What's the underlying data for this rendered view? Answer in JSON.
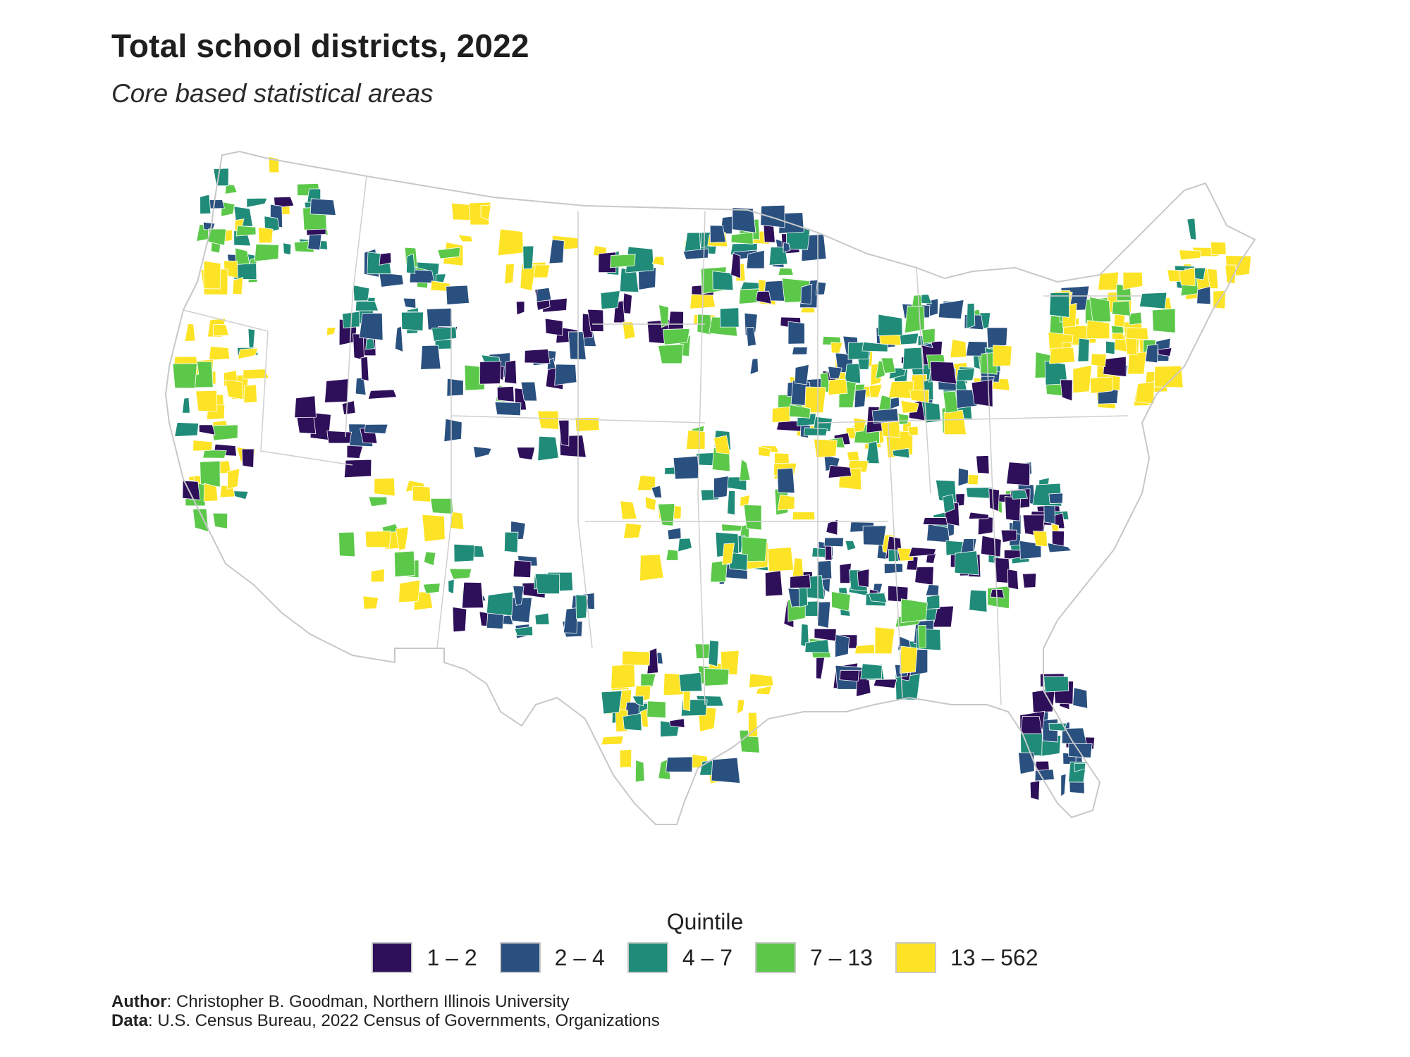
{
  "title": "Total school districts, 2022",
  "subtitle": "Core based statistical areas",
  "legend": {
    "title": "Quintile",
    "items": [
      {
        "label": "1 – 2",
        "color": "#2e0f5a"
      },
      {
        "label": "2 – 4",
        "color": "#29507f"
      },
      {
        "label": "4 – 7",
        "color": "#1f8b78"
      },
      {
        "label": "7 – 13",
        "color": "#5cc84a"
      },
      {
        "label": "13 – 562",
        "color": "#fde325"
      }
    ]
  },
  "credits": {
    "author_label": "Author",
    "author_text": ": Christopher B. Goodman, Northern Illinois University",
    "data_label": "Data",
    "data_text": ": U.S. Census Bureau, 2022 Census of Governments, Organizations"
  },
  "colors": {
    "state_border": "#c8c8c8",
    "land": "#ffffff"
  }
}
